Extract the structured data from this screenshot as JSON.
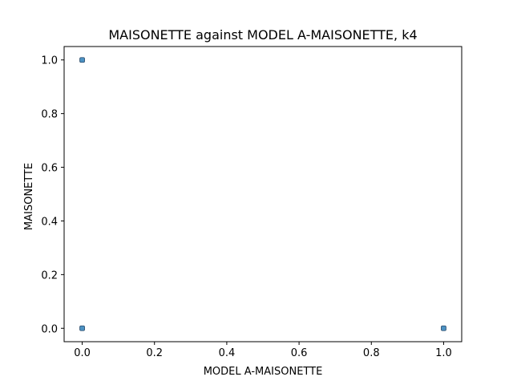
{
  "chart_data": {
    "type": "scatter",
    "title": "MAISONETTE against MODEL A-MAISONETTE, k4",
    "xlabel": "MODEL A-MAISONETTE",
    "ylabel": "MAISONETTE",
    "xlim": [
      -0.05,
      1.05
    ],
    "ylim": [
      -0.05,
      1.05
    ],
    "xticks": [
      "0.0",
      "0.2",
      "0.4",
      "0.6",
      "0.8",
      "1.0"
    ],
    "yticks": [
      "0.0",
      "0.2",
      "0.4",
      "0.6",
      "0.8",
      "1.0"
    ],
    "grid": false,
    "points": [
      {
        "x": 0.0,
        "y": 1.0
      },
      {
        "x": 0.0,
        "y": 0.0
      },
      {
        "x": 1.0,
        "y": 0.0
      }
    ],
    "marker_color": "#1f77b4"
  }
}
